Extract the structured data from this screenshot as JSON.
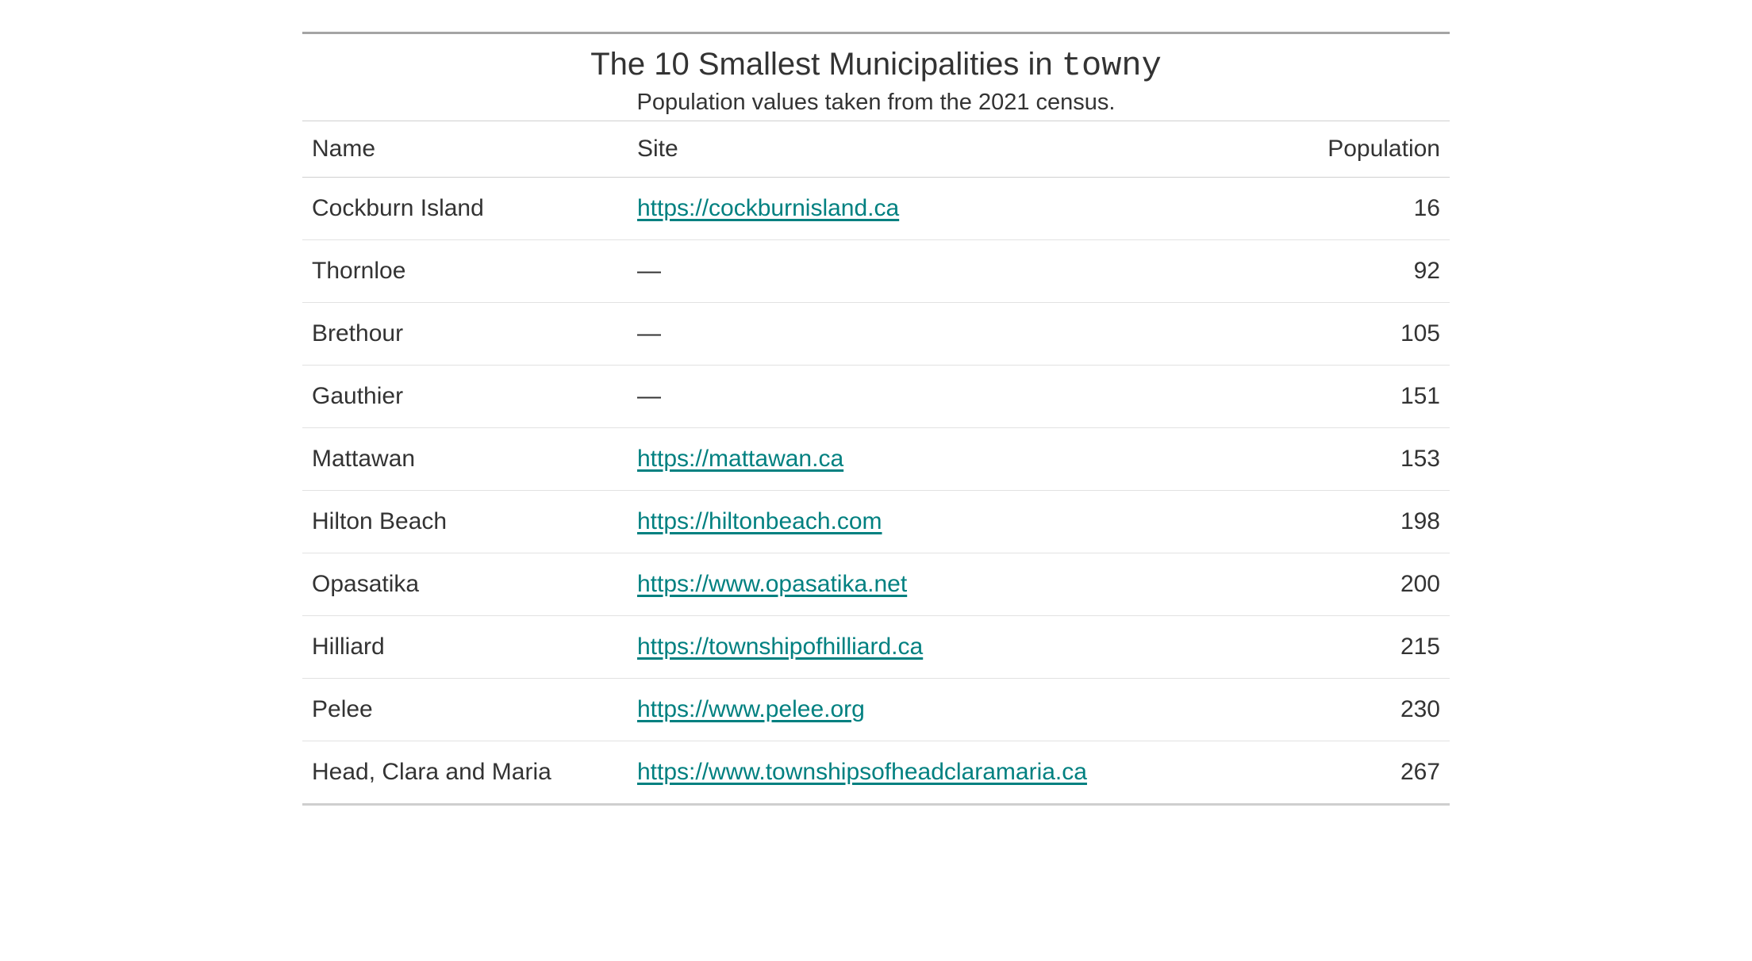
{
  "title_prefix": "The 10 Smallest Municipalities in ",
  "title_code": "towny",
  "subtitle": "Population values taken from the 2021 census.",
  "columns": {
    "name": "Name",
    "site": "Site",
    "population": "Population"
  },
  "link_color": "#008080",
  "text_color": "#333333",
  "border_color_heavy": "#a4a4a4",
  "border_color_light": "#e2e2e2",
  "background_color": "#ffffff",
  "font_size_title": 40,
  "font_size_subtitle": 29,
  "font_size_body": 30,
  "na_placeholder": "—",
  "column_widths": {
    "name": 410,
    "population": 220
  },
  "rows": [
    {
      "name": "Cockburn Island",
      "site": "https://cockburnisland.ca",
      "population": "16"
    },
    {
      "name": "Thornloe",
      "site": null,
      "population": "92"
    },
    {
      "name": "Brethour",
      "site": null,
      "population": "105"
    },
    {
      "name": "Gauthier",
      "site": null,
      "population": "151"
    },
    {
      "name": "Mattawan",
      "site": "https://mattawan.ca",
      "population": "153"
    },
    {
      "name": "Hilton Beach",
      "site": "https://hiltonbeach.com",
      "population": "198"
    },
    {
      "name": "Opasatika",
      "site": "https://www.opasatika.net",
      "population": "200"
    },
    {
      "name": "Hilliard",
      "site": "https://townshipofhilliard.ca",
      "population": "215"
    },
    {
      "name": "Pelee",
      "site": "https://www.pelee.org",
      "population": "230"
    },
    {
      "name": "Head, Clara and Maria",
      "site": "https://www.townshipsofheadclaramaria.ca",
      "population": "267"
    }
  ]
}
